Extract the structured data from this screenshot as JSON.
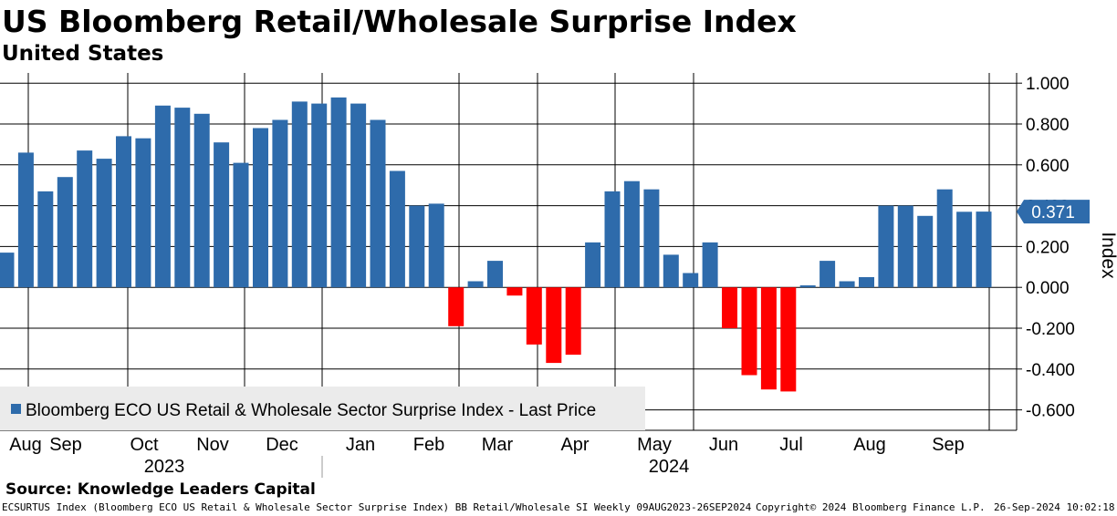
{
  "header": {
    "title": "US Bloomberg Retail/Wholesale Surprise Index",
    "subtitle": "United States"
  },
  "footer": {
    "source": "Source: Knowledge Leaders Capital",
    "ticker_line": "ECSURTUS Index (Bloomberg ECO US Retail & Wholesale Sector Surprise Index) BB Retail/Wholesale SI  Weekly 09AUG2023-26SEP2024",
    "copyright": "Copyright© 2024 Bloomberg Finance L.P.",
    "timestamp": "26-Sep-2024 10:02:18"
  },
  "chart_data": {
    "type": "bar",
    "title": "US Bloomberg Retail/Wholesale Surprise Index",
    "subtitle": "United States",
    "ylabel": "Index",
    "ylim": [
      -0.7,
      1.05
    ],
    "y_ticks": [
      1.0,
      0.8,
      0.6,
      0.4,
      0.2,
      0.0,
      -0.2,
      -0.4,
      -0.6
    ],
    "y_tick_labels": [
      "1.000",
      "0.800",
      "0.600",
      "0.400",
      "0.200",
      "0.000",
      "-0.200",
      "-0.400",
      "-0.600"
    ],
    "y_axis_side": "right",
    "grid": true,
    "month_labels": [
      "Aug",
      "Sep",
      "Oct",
      "Nov",
      "Dec",
      "Jan",
      "Feb",
      "Mar",
      "Apr",
      "May",
      "Jun",
      "Jul",
      "Aug",
      "Sep"
    ],
    "year_labels": [
      "2023",
      "2024"
    ],
    "legend": {
      "label": "Bloomberg ECO US Retail & Wholesale Sector Surprise Index - Last Price",
      "position": "bottom-left"
    },
    "last_value_label": "0.371",
    "colors": {
      "positive": "#2e6bab",
      "negative": "#ff0000",
      "grid": "#000000"
    },
    "series": [
      {
        "name": "Bloomberg ECO US Retail & Wholesale Sector Surprise Index - Last Price",
        "frequency": "Weekly",
        "start": "09AUG2023",
        "end": "26SEP2024",
        "values": [
          0.17,
          0.66,
          0.47,
          0.54,
          0.67,
          0.63,
          0.74,
          0.73,
          0.89,
          0.88,
          0.85,
          0.71,
          0.61,
          0.78,
          0.82,
          0.91,
          0.9,
          0.93,
          0.9,
          0.82,
          0.57,
          0.4,
          0.41,
          -0.19,
          0.03,
          0.13,
          -0.04,
          -0.28,
          -0.37,
          -0.33,
          0.22,
          0.47,
          0.52,
          0.48,
          0.16,
          0.07,
          0.22,
          -0.2,
          -0.43,
          -0.5,
          -0.51,
          0.01,
          0.13,
          0.03,
          0.05,
          0.4,
          0.4,
          0.35,
          0.48,
          0.37,
          0.371
        ]
      }
    ]
  }
}
